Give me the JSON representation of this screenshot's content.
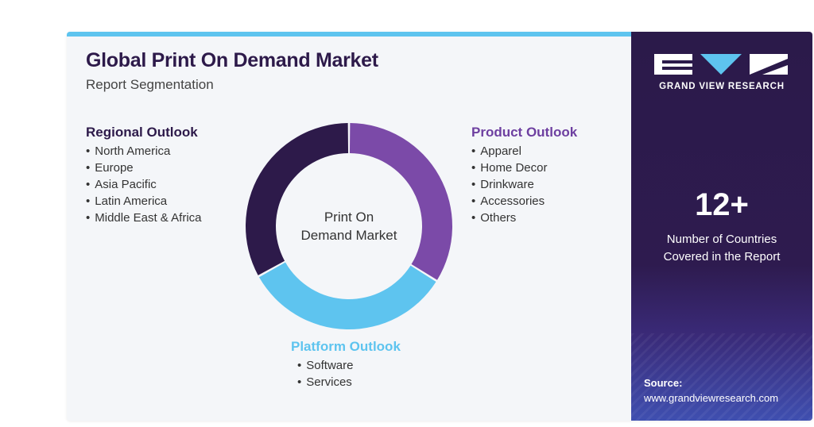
{
  "header": {
    "title": "Global Print On Demand Market",
    "subtitle": "Report Segmentation"
  },
  "center_label": [
    "Print On",
    "Demand Market"
  ],
  "segments": {
    "regional": {
      "title": "Regional Outlook",
      "color": "#2d1a4a",
      "items": [
        "North America",
        "Europe",
        "Asia Pacific",
        "Latin America",
        "Middle East & Africa"
      ]
    },
    "product": {
      "title": "Product Outlook",
      "color": "#6d3fa0",
      "items": [
        "Apparel",
        "Home Decor",
        "Drinkware",
        "Accessories",
        "Others"
      ]
    },
    "platform": {
      "title": "Platform Outlook",
      "color": "#5ec4ef",
      "items": [
        "Software",
        "Services"
      ]
    }
  },
  "donut_segments": [
    {
      "segment": "product",
      "color": "#7b4aa8",
      "start_deg": 0,
      "end_deg": 122
    },
    {
      "segment": "platform",
      "color": "#5ec4ef",
      "start_deg": 122,
      "end_deg": 241
    },
    {
      "segment": "regional",
      "color": "#2d1a4a",
      "start_deg": 241,
      "end_deg": 360
    }
  ],
  "sidebar": {
    "brand": "GRAND VIEW RESEARCH",
    "stat_value": "12+",
    "stat_label_lines": [
      "Number of Countries",
      "Covered in the Report"
    ],
    "source_label": "Source:",
    "source_url": "www.grandviewresearch.com"
  },
  "colors": {
    "accent_bar": "#5ec4ef",
    "sidebar_bg": "#2b1a4a"
  }
}
